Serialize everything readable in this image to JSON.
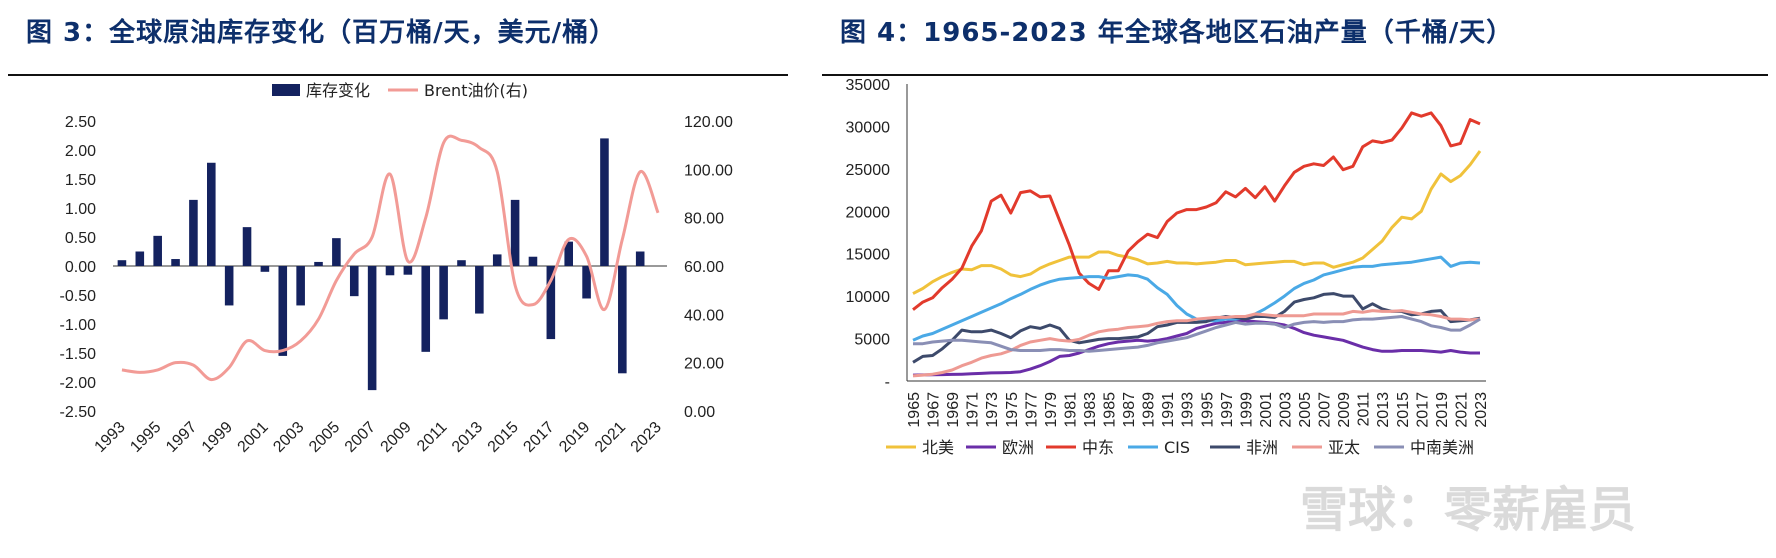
{
  "chart_data": [
    {
      "type": "bar",
      "title": "图 3：全球原油库存变化（百万桶/天，美元/桶）",
      "categories": [
        "1993",
        "1994",
        "1995",
        "1996",
        "1997",
        "1998",
        "1999",
        "2000",
        "2001",
        "2002",
        "2003",
        "2004",
        "2005",
        "2006",
        "2007",
        "2008",
        "2009",
        "2010",
        "2011",
        "2012",
        "2013",
        "2014",
        "2015",
        "2016",
        "2017",
        "2018",
        "2019",
        "2020",
        "2021",
        "2022",
        "2023"
      ],
      "x_tick_labels": [
        "1993",
        "1995",
        "1997",
        "1999",
        "2001",
        "2003",
        "2005",
        "2007",
        "2009",
        "2011",
        "2013",
        "2015",
        "2017",
        "2019",
        "2021",
        "2023"
      ],
      "series": [
        {
          "name": "库存变化",
          "type": "bar",
          "axis": "left",
          "color": "#14225f",
          "values": [
            0.1,
            0.25,
            0.52,
            0.12,
            1.14,
            1.78,
            -0.68,
            0.67,
            -0.1,
            -1.55,
            -0.68,
            0.07,
            0.48,
            -0.52,
            -2.14,
            -0.16,
            -0.15,
            -1.48,
            -0.92,
            0.1,
            -0.82,
            0.2,
            1.14,
            0.16,
            -1.26,
            0.42,
            -0.56,
            2.2,
            -1.85,
            0.25,
            0.0
          ]
        },
        {
          "name": "Brent油价(右)",
          "type": "line",
          "axis": "right",
          "color": "#f29b96",
          "values": [
            17,
            16,
            17,
            20,
            19,
            13,
            18,
            29,
            25,
            25,
            29,
            38,
            54,
            65,
            72,
            98,
            62,
            80,
            111,
            112,
            109,
            99,
            52,
            44,
            54,
            71,
            64,
            42,
            71,
            99,
            82
          ]
        }
      ],
      "left_axis": {
        "ylim": [
          -2.5,
          2.5
        ],
        "ticks": [
          "2.50",
          "2.00",
          "1.50",
          "1.00",
          "0.50",
          "0.00",
          "-0.50",
          "-1.00",
          "-1.50",
          "-2.00",
          "-2.50"
        ]
      },
      "right_axis": {
        "ylim": [
          0,
          120
        ],
        "ticks": [
          "120.00",
          "100.00",
          "80.00",
          "60.00",
          "40.00",
          "20.00",
          "0.00"
        ]
      },
      "legend_position": "top-center"
    },
    {
      "type": "line",
      "title": "图 4：1965-2023 年全球各地区石油产量（千桶/天）",
      "x": [
        1965,
        1966,
        1967,
        1968,
        1969,
        1970,
        1971,
        1972,
        1973,
        1974,
        1975,
        1976,
        1977,
        1978,
        1979,
        1980,
        1981,
        1982,
        1983,
        1984,
        1985,
        1986,
        1987,
        1988,
        1989,
        1990,
        1991,
        1992,
        1993,
        1994,
        1995,
        1996,
        1997,
        1998,
        1999,
        2000,
        2001,
        2002,
        2003,
        2004,
        2005,
        2006,
        2007,
        2008,
        2009,
        2010,
        2011,
        2012,
        2013,
        2014,
        2015,
        2016,
        2017,
        2018,
        2019,
        2020,
        2021,
        2022,
        2023
      ],
      "x_tick_labels": [
        "1965",
        "1967",
        "1969",
        "1971",
        "1973",
        "1975",
        "1977",
        "1979",
        "1981",
        "1983",
        "1985",
        "1987",
        "1989",
        "1991",
        "1993",
        "1995",
        "1997",
        "1999",
        "2001",
        "2003",
        "2005",
        "2007",
        "2009",
        "2011",
        "2013",
        "2015",
        "2017",
        "2019",
        "2021",
        "2023"
      ],
      "ylim": [
        0,
        35000
      ],
      "y_tick_labels": [
        "35000",
        "30000",
        "25000",
        "20000",
        "15000",
        "10000",
        "5000",
        "-"
      ],
      "series": [
        {
          "name": "北美",
          "color": "#f0c23b",
          "values": [
            10300,
            10900,
            11700,
            12300,
            12800,
            13200,
            13100,
            13600,
            13600,
            13200,
            12500,
            12300,
            12600,
            13300,
            13800,
            14200,
            14600,
            14600,
            14600,
            15200,
            15200,
            14800,
            14600,
            14300,
            13800,
            13900,
            14100,
            13900,
            13900,
            13800,
            13900,
            14000,
            14200,
            14200,
            13700,
            13800,
            13900,
            14000,
            14100,
            14100,
            13700,
            13900,
            13900,
            13400,
            13700,
            14000,
            14500,
            15500,
            16500,
            18100,
            19300,
            19100,
            20000,
            22600,
            24400,
            23500,
            24200,
            25500,
            27100
          ]
        },
        {
          "name": "欧洲",
          "color": "#6a2ea8",
          "values": [
            700,
            720,
            740,
            760,
            780,
            800,
            850,
            900,
            950,
            970,
            1000,
            1100,
            1400,
            1800,
            2300,
            2900,
            3000,
            3300,
            3700,
            4100,
            4400,
            4600,
            4700,
            4800,
            4700,
            4800,
            5000,
            5300,
            5600,
            6200,
            6500,
            6800,
            6900,
            7100,
            7100,
            7000,
            6900,
            6800,
            6600,
            6200,
            5700,
            5400,
            5200,
            5000,
            4800,
            4400,
            4000,
            3700,
            3500,
            3500,
            3600,
            3600,
            3600,
            3500,
            3400,
            3600,
            3400,
            3300,
            3300
          ]
        },
        {
          "name": "中东",
          "color": "#e23a2c",
          "values": [
            8400,
            9300,
            9800,
            11000,
            12000,
            13300,
            15900,
            17700,
            21200,
            21900,
            19800,
            22200,
            22400,
            21700,
            21800,
            18900,
            16000,
            12700,
            11500,
            10800,
            13000,
            13000,
            15300,
            16400,
            17300,
            16900,
            18800,
            19800,
            20200,
            20200,
            20500,
            21000,
            22300,
            21700,
            22700,
            21600,
            22900,
            21200,
            23000,
            24600,
            25300,
            25600,
            25400,
            26400,
            24900,
            25300,
            27600,
            28300,
            28100,
            28400,
            29800,
            31600,
            31200,
            31600,
            30100,
            27700,
            28000,
            30800,
            30300
          ]
        },
        {
          "name": "CIS",
          "color": "#4aa9e6",
          "values": [
            4800,
            5300,
            5600,
            6100,
            6600,
            7100,
            7600,
            8100,
            8600,
            9100,
            9700,
            10200,
            10800,
            11300,
            11700,
            12000,
            12100,
            12200,
            12300,
            12300,
            12100,
            12300,
            12500,
            12400,
            12000,
            11000,
            10200,
            8900,
            7900,
            7300,
            7100,
            7100,
            7300,
            7300,
            7500,
            7900,
            8500,
            9200,
            10000,
            10900,
            11500,
            11900,
            12500,
            12800,
            13100,
            13400,
            13500,
            13500,
            13700,
            13800,
            13900,
            14000,
            14200,
            14400,
            14600,
            13500,
            13900,
            14000,
            13900
          ]
        },
        {
          "name": "非洲",
          "color": "#3d4a6b",
          "values": [
            2200,
            2900,
            3000,
            3800,
            4800,
            6000,
            5800,
            5800,
            6000,
            5600,
            5100,
            5900,
            6400,
            6200,
            6600,
            6200,
            4800,
            4500,
            4700,
            4900,
            5000,
            5000,
            5100,
            5200,
            5600,
            6400,
            6600,
            6900,
            6900,
            6900,
            7000,
            7400,
            7600,
            7500,
            7300,
            7600,
            7600,
            7500,
            8200,
            9300,
            9600,
            9800,
            10200,
            10300,
            10000,
            10000,
            8500,
            9100,
            8500,
            8200,
            8200,
            7800,
            7900,
            8200,
            8300,
            7000,
            7100,
            7200,
            7400
          ]
        },
        {
          "name": "亚太",
          "color": "#ee9a93",
          "values": [
            600,
            700,
            800,
            1000,
            1300,
            1800,
            2200,
            2700,
            3000,
            3200,
            3600,
            4200,
            4600,
            4800,
            5000,
            4800,
            4700,
            4900,
            5400,
            5800,
            6000,
            6100,
            6300,
            6400,
            6500,
            6800,
            7000,
            7100,
            7100,
            7300,
            7400,
            7500,
            7500,
            7600,
            7600,
            7900,
            7800,
            7700,
            7700,
            7700,
            7700,
            7900,
            7900,
            7900,
            7900,
            8200,
            8100,
            8300,
            8200,
            8200,
            8300,
            8100,
            7900,
            7800,
            7600,
            7300,
            7300,
            7200,
            7300
          ]
        },
        {
          "name": "中南美洲",
          "color": "#8a8fb5",
          "values": [
            4400,
            4400,
            4600,
            4700,
            4800,
            4800,
            4700,
            4600,
            4500,
            4100,
            3700,
            3600,
            3600,
            3600,
            3700,
            3700,
            3600,
            3600,
            3500,
            3600,
            3700,
            3800,
            3900,
            4000,
            4200,
            4500,
            4700,
            4900,
            5100,
            5500,
            5900,
            6300,
            6600,
            6900,
            6700,
            6800,
            6800,
            6700,
            6300,
            6700,
            6900,
            7000,
            6900,
            7000,
            7000,
            7200,
            7300,
            7300,
            7400,
            7500,
            7600,
            7300,
            7000,
            6500,
            6300,
            6000,
            6000,
            6600,
            7300
          ]
        }
      ],
      "legend_position": "bottom"
    }
  ],
  "watermark": "雪球：零薪雇员"
}
